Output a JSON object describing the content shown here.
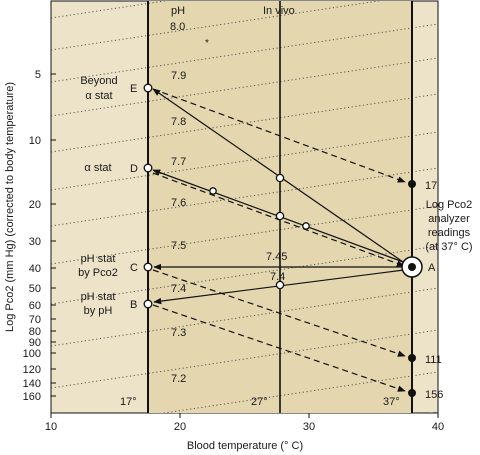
{
  "figure": {
    "y_axis_label": "Log Pco2 (mm Hg) (corrected to body temperature)",
    "x_axis_label": "Blood temperature (° C)",
    "x_ticks": [
      "10",
      "20",
      "30",
      "40"
    ],
    "y_ticks": [
      "5",
      "10",
      "20",
      "30",
      "40",
      "50",
      "60",
      "70",
      "80",
      "90",
      "100",
      "120",
      "140",
      "160"
    ],
    "column_labels": {
      "ph": "pH",
      "in_vivo": "In vivo"
    },
    "bottom_temps": {
      "t17": "17°",
      "t27": "27°",
      "t37": "37°"
    },
    "isopleths": [
      "8.0",
      "7.9",
      "7.8",
      "7.7",
      "7.6",
      "7.5",
      "7.45",
      "7.4",
      "7.3",
      "7.2"
    ],
    "strategies": [
      {
        "letter": "E",
        "line1": "Beyond",
        "line2": "α stat"
      },
      {
        "letter": "D",
        "line1": "α stat",
        "line2": ""
      },
      {
        "letter": "C",
        "line1": "pH stat",
        "line2": "by Pco2"
      },
      {
        "letter": "B",
        "line1": "pH stat",
        "line2": "by pH"
      }
    ],
    "point_a": "A",
    "analyzer_values": [
      "17",
      "111",
      "156"
    ],
    "analyzer_caption": [
      "Log Pco2",
      "analyzer",
      "readings",
      "(at 37° C)"
    ],
    "colors": {
      "panel": "#ede3c9",
      "ink": "#111111",
      "isopleth": "#555555"
    }
  },
  "chart_data": {
    "type": "line",
    "x_range": [
      10,
      40
    ],
    "y_scale": "log",
    "y_range": [
      2.5,
      180
    ],
    "xlabel": "Blood temperature (° C)",
    "ylabel": "Log Pco2 (mm Hg) (corrected to body temperature)",
    "reference_temperatures": [
      17,
      27.5,
      38
    ],
    "points": [
      {
        "name": "E",
        "x": 17,
        "y": 6
      },
      {
        "name": "D",
        "x": 17,
        "y": 14
      },
      {
        "name": "C",
        "x": 17,
        "y": 40
      },
      {
        "name": "B",
        "x": 17,
        "y": 60
      },
      {
        "name": "A",
        "x": 38,
        "y": 40
      },
      {
        "name": "17",
        "x": 38,
        "y": 17
      },
      {
        "name": "111",
        "x": 38,
        "y": 111
      },
      {
        "name": "156",
        "x": 38,
        "y": 156
      }
    ],
    "series": [
      {
        "from": "A",
        "to": "E",
        "style": "solid"
      },
      {
        "from": "E",
        "to": "17",
        "style": "dashed"
      },
      {
        "from": "A",
        "to": "D",
        "style": "solid"
      },
      {
        "from": "D",
        "to": "A",
        "style": "dashed"
      },
      {
        "from": "A",
        "to": "C",
        "style": "solid"
      },
      {
        "from": "C",
        "to": "111",
        "style": "dashed"
      },
      {
        "from": "A",
        "to": "B",
        "style": "solid"
      },
      {
        "from": "B",
        "to": "156",
        "style": "dashed"
      }
    ]
  }
}
